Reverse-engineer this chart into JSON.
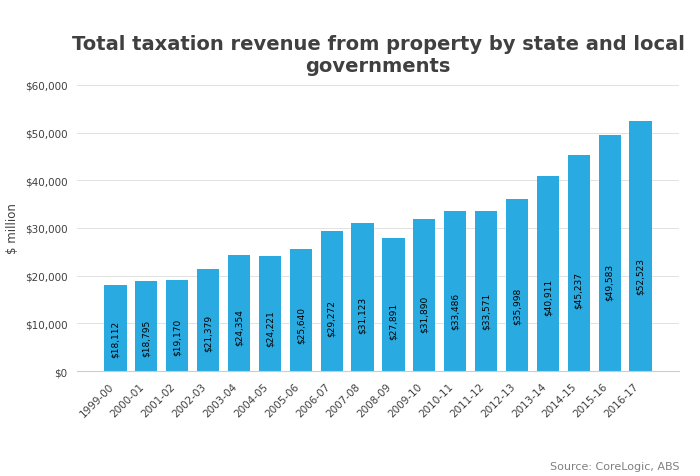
{
  "title": "Total taxation revenue from property by state and local\ngovernments",
  "ylabel": "$ million",
  "source": "Source: CoreLogic, ABS",
  "bar_color": "#29ABE2",
  "background_color": "#FFFFFF",
  "categories": [
    "1999-00",
    "2000-01",
    "2001-02",
    "2002-03",
    "2003-04",
    "2004-05",
    "2005-06",
    "2006-07",
    "2007-08",
    "2008-09",
    "2009-10",
    "2010-11",
    "2011-12",
    "2012-13",
    "2013-14",
    "2014-15",
    "2015-16",
    "2016-17"
  ],
  "values": [
    18112,
    18795,
    19170,
    21379,
    24354,
    24221,
    25640,
    29272,
    31123,
    27891,
    31890,
    33486,
    33571,
    35998,
    40911,
    45237,
    49583,
    52523
  ],
  "ylim": [
    0,
    60000
  ],
  "yticks": [
    0,
    10000,
    20000,
    30000,
    40000,
    50000,
    60000
  ],
  "ytick_labels": [
    "$0",
    "$10,000",
    "$20,000",
    "$30,000",
    "$40,000",
    "$50,000",
    "$60,000"
  ],
  "title_fontsize": 14,
  "label_fontsize": 7.5,
  "bar_label_fontsize": 6.5,
  "ylabel_fontsize": 8.5,
  "source_fontsize": 8,
  "title_color": "#404040",
  "tick_color": "#404040",
  "source_color": "#808080"
}
